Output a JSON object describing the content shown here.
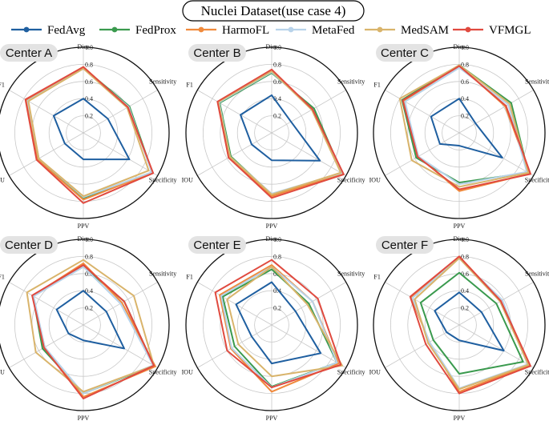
{
  "figure": {
    "title": "Nuclei Dataset(use case 4)"
  },
  "chart_data": {
    "type": "radar",
    "axes": [
      "Dice",
      "Sensitivity",
      "Specificity",
      "PPV",
      "IOU",
      "F1"
    ],
    "rlim": [
      0,
      1.0
    ],
    "ticks": [
      "0.2",
      "0.4",
      "0.6",
      "0.8",
      "1.0"
    ],
    "series_styles": [
      {
        "name": "FedAvg",
        "color": "#1f5fa0"
      },
      {
        "name": "FedProx",
        "color": "#3a9a4e"
      },
      {
        "name": "HarmoFL",
        "color": "#f08a3c"
      },
      {
        "name": "MetaFed",
        "color": "#b8d3ea"
      },
      {
        "name": "MedSAM",
        "color": "#d9b46b"
      },
      {
        "name": "VFMGL",
        "color": "#e04a3f"
      }
    ],
    "panels": [
      {
        "label": "Center A",
        "series": [
          {
            "name": "FedAvg",
            "values": [
              0.4,
              0.33,
              0.62,
              0.31,
              0.25,
              0.4
            ]
          },
          {
            "name": "FedProx",
            "values": [
              0.76,
              0.62,
              0.93,
              0.76,
              0.6,
              0.76
            ]
          },
          {
            "name": "HarmoFL",
            "values": [
              0.77,
              0.6,
              0.93,
              0.78,
              0.62,
              0.77
            ]
          },
          {
            "name": "MetaFed",
            "values": [
              0.75,
              0.61,
              0.92,
              0.75,
              0.6,
              0.75
            ]
          },
          {
            "name": "MedSAM",
            "values": [
              0.75,
              0.59,
              0.88,
              0.74,
              0.6,
              0.74
            ]
          },
          {
            "name": "VFMGL",
            "values": [
              0.77,
              0.6,
              0.94,
              0.82,
              0.63,
              0.78
            ]
          }
        ]
      },
      {
        "label": "Center B",
        "series": [
          {
            "name": "FedAvg",
            "values": [
              0.44,
              0.26,
              0.65,
              0.32,
              0.27,
              0.42
            ]
          },
          {
            "name": "FedProx",
            "values": [
              0.7,
              0.57,
              0.95,
              0.72,
              0.55,
              0.7
            ]
          },
          {
            "name": "HarmoFL",
            "values": [
              0.73,
              0.54,
              0.95,
              0.74,
              0.58,
              0.72
            ]
          },
          {
            "name": "MetaFed",
            "values": [
              0.71,
              0.55,
              0.94,
              0.71,
              0.56,
              0.71
            ]
          },
          {
            "name": "MedSAM",
            "values": [
              0.72,
              0.54,
              0.93,
              0.72,
              0.56,
              0.72
            ]
          },
          {
            "name": "VFMGL",
            "values": [
              0.74,
              0.55,
              0.97,
              0.76,
              0.58,
              0.73
            ]
          }
        ]
      },
      {
        "label": "Center C",
        "series": [
          {
            "name": "FedAvg",
            "values": [
              0.4,
              0.22,
              0.58,
              0.15,
              0.26,
              0.38
            ]
          },
          {
            "name": "FedProx",
            "values": [
              0.79,
              0.7,
              0.93,
              0.58,
              0.58,
              0.77
            ]
          },
          {
            "name": "HarmoFL",
            "values": [
              0.79,
              0.62,
              0.95,
              0.68,
              0.55,
              0.74
            ]
          },
          {
            "name": "MetaFed",
            "values": [
              0.76,
              0.66,
              0.91,
              0.6,
              0.55,
              0.73
            ]
          },
          {
            "name": "MedSAM",
            "values": [
              0.79,
              0.68,
              0.93,
              0.63,
              0.64,
              0.8
            ]
          },
          {
            "name": "VFMGL",
            "values": [
              0.78,
              0.63,
              0.96,
              0.66,
              0.56,
              0.76
            ]
          }
        ]
      },
      {
        "label": "Center D",
        "series": [
          {
            "name": "FedAvg",
            "values": [
              0.4,
              0.31,
              0.55,
              0.18,
              0.2,
              0.36
            ]
          },
          {
            "name": "FedProx",
            "values": [
              0.68,
              0.55,
              0.95,
              0.8,
              0.55,
              0.68
            ]
          },
          {
            "name": "HarmoFL",
            "values": [
              0.72,
              0.52,
              0.97,
              0.84,
              0.52,
              0.68
            ]
          },
          {
            "name": "MetaFed",
            "values": [
              0.68,
              0.5,
              0.94,
              0.8,
              0.52,
              0.67
            ]
          },
          {
            "name": "MedSAM",
            "values": [
              0.76,
              0.68,
              0.95,
              0.78,
              0.64,
              0.76
            ]
          },
          {
            "name": "VFMGL",
            "values": [
              0.7,
              0.55,
              0.95,
              0.86,
              0.53,
              0.69
            ]
          }
        ]
      },
      {
        "label": "Center E",
        "series": [
          {
            "name": "FedAvg",
            "values": [
              0.5,
              0.32,
              0.66,
              0.45,
              0.27,
              0.48
            ]
          },
          {
            "name": "FedProx",
            "values": [
              0.65,
              0.5,
              0.88,
              0.72,
              0.5,
              0.66
            ]
          },
          {
            "name": "HarmoFL",
            "values": [
              0.7,
              0.55,
              0.9,
              0.78,
              0.55,
              0.7
            ]
          },
          {
            "name": "MetaFed",
            "values": [
              0.68,
              0.55,
              0.88,
              0.73,
              0.54,
              0.68
            ]
          },
          {
            "name": "MedSAM",
            "values": [
              0.68,
              0.48,
              0.95,
              0.6,
              0.45,
              0.6
            ]
          },
          {
            "name": "VFMGL",
            "values": [
              0.76,
              0.62,
              0.93,
              0.73,
              0.6,
              0.76
            ]
          }
        ]
      },
      {
        "label": "Center F",
        "series": [
          {
            "name": "FedAvg",
            "values": [
              0.38,
              0.3,
              0.6,
              0.18,
              0.17,
              0.33
            ]
          },
          {
            "name": "FedProx",
            "values": [
              0.61,
              0.5,
              0.86,
              0.57,
              0.35,
              0.52
            ]
          },
          {
            "name": "HarmoFL",
            "values": [
              0.8,
              0.56,
              0.94,
              0.78,
              0.4,
              0.65
            ]
          },
          {
            "name": "MetaFed",
            "values": [
              0.78,
              0.58,
              0.92,
              0.74,
              0.4,
              0.63
            ]
          },
          {
            "name": "MedSAM",
            "values": [
              0.78,
              0.55,
              0.93,
              0.75,
              0.42,
              0.6
            ]
          },
          {
            "name": "VFMGL",
            "values": [
              0.8,
              0.56,
              0.96,
              0.8,
              0.45,
              0.66
            ]
          }
        ]
      }
    ]
  }
}
